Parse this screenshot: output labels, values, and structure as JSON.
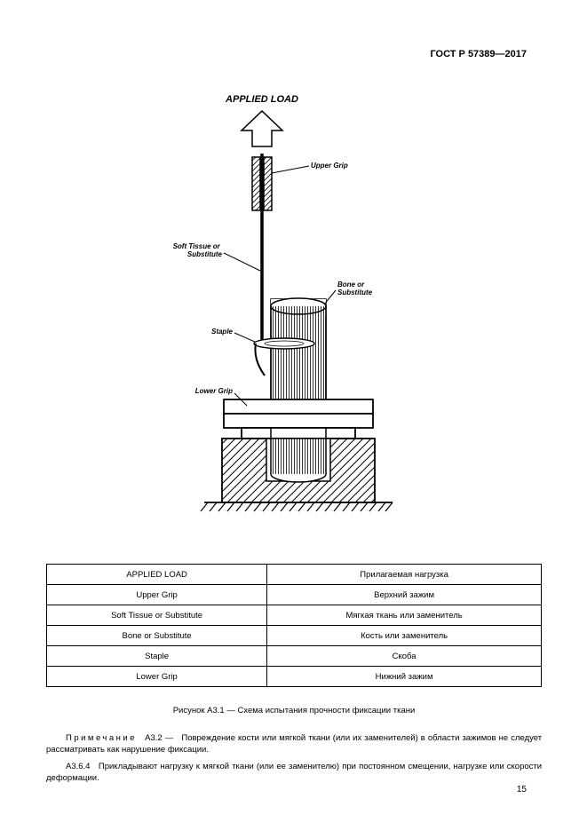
{
  "header": "ГОСТ Р 57389—2017",
  "page_number": "15",
  "diagram": {
    "title": "APPLIED LOAD",
    "labels": {
      "upper_grip": "Upper Grip",
      "soft_tissue": "Soft Tissue or\nSubstitute",
      "bone": "Bone or\nSubstitute",
      "staple": "Staple",
      "lower_grip": "Lower Grip"
    },
    "title_font": {
      "weight": "bold",
      "style": "italic",
      "size": 11
    },
    "label_font": {
      "weight": "bold",
      "style": "italic",
      "size": 8
    },
    "colors": {
      "stroke": "#000000",
      "fill_hatch": "#000000",
      "bg": "#ffffff"
    },
    "stroke_width": 1.5
  },
  "table": {
    "rows": [
      [
        "APPLIED LOAD",
        "Прилагаемая нагрузка"
      ],
      [
        "Upper Grip",
        "Верхний зажим"
      ],
      [
        "Soft Tissue or Substitute",
        "Мягкая ткань или заменитель"
      ],
      [
        "Bone or Substitute",
        "Кость или заменитель"
      ],
      [
        "Staple",
        "Скоба"
      ],
      [
        "Lower Grip",
        "Нижний зажим"
      ]
    ],
    "col_widths": [
      "50%",
      "50%"
    ],
    "font_size": 9.5,
    "border_color": "#000000"
  },
  "figure_caption": "Рисунок А3.1 — Схема испытания прочности фиксации ткани",
  "note_label": "Примечание",
  "note_num": "А3.2 —",
  "note_text": "Повреждение кости или мягкой ткани (или их заменителей) в области зажимов не следует рассматривать как нарушение фиксации.",
  "para_num": "А3.6.4",
  "para_text": "Прикладывают нагрузку к мягкой ткани (или ее заменителю) при постоянном смещении, нагрузке или скорости деформации."
}
